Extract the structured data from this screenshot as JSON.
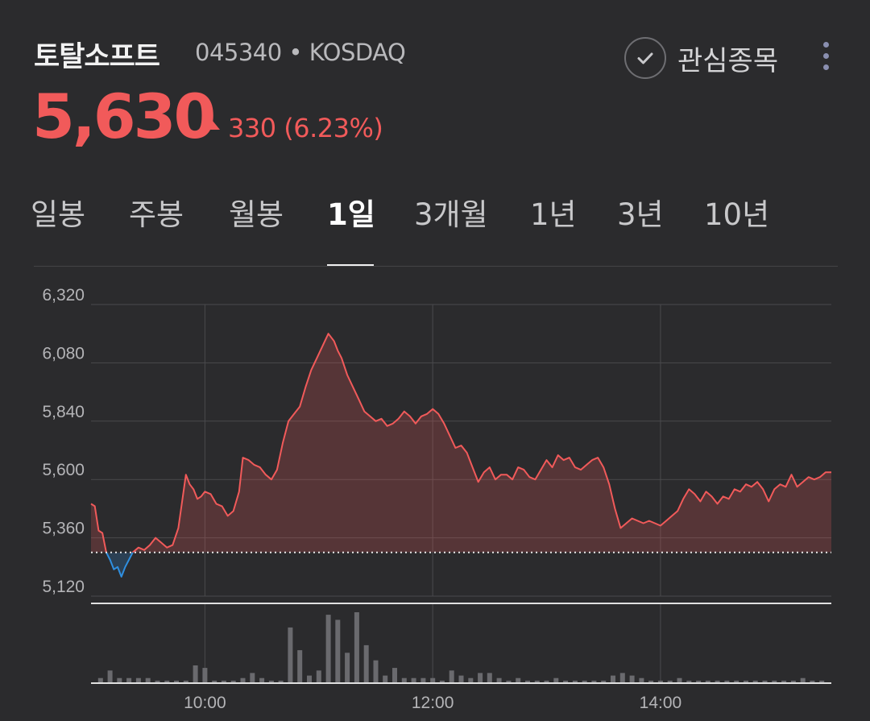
{
  "header": {
    "stock_name": "토탈소프트",
    "stock_code": "045340 • KOSDAQ",
    "watch_label": "관심종목"
  },
  "quote": {
    "price": "5,630",
    "change": "330 (6.23%)",
    "direction": "up"
  },
  "tabs": [
    {
      "label": "일봉",
      "active": false
    },
    {
      "label": "주봉",
      "active": false
    },
    {
      "label": "월봉",
      "active": false
    },
    {
      "label": "1일",
      "active": true
    },
    {
      "label": "3개월",
      "active": false
    },
    {
      "label": "1년",
      "active": false
    },
    {
      "label": "3년",
      "active": false
    },
    {
      "label": "10년",
      "active": false
    }
  ],
  "colors": {
    "background": "#2b2b2d",
    "up": "#f15a5a",
    "down": "#2f8fe0",
    "volume": "#6a6a6e",
    "grid": "#4a4a4d"
  },
  "chart_data": {
    "type": "line",
    "title": "",
    "xlabel": "",
    "ylabel": "",
    "ylim": [
      5120,
      6320
    ],
    "y_ticks": [
      "6,320",
      "6,080",
      "5,840",
      "5,600",
      "5,360",
      "5,120"
    ],
    "x_ticks": [
      "10:00",
      "12:00",
      "14:00"
    ],
    "x_range": [
      "09:00",
      "15:30"
    ],
    "previous_close": 5300,
    "grid": true,
    "series": [
      {
        "values": [
          [
            "09:00",
            5500
          ],
          [
            "09:02",
            5490
          ],
          [
            "09:04",
            5390
          ],
          [
            "09:06",
            5380
          ],
          [
            "09:08",
            5300
          ],
          [
            "09:10",
            5270
          ],
          [
            "09:12",
            5230
          ],
          [
            "09:14",
            5240
          ],
          [
            "09:16",
            5200
          ],
          [
            "09:18",
            5240
          ],
          [
            "09:20",
            5270
          ],
          [
            "09:22",
            5300
          ],
          [
            "09:25",
            5320
          ],
          [
            "09:28",
            5310
          ],
          [
            "09:31",
            5330
          ],
          [
            "09:34",
            5360
          ],
          [
            "09:37",
            5340
          ],
          [
            "09:40",
            5320
          ],
          [
            "09:43",
            5330
          ],
          [
            "09:46",
            5400
          ],
          [
            "09:48",
            5510
          ],
          [
            "09:50",
            5620
          ],
          [
            "09:52",
            5580
          ],
          [
            "09:54",
            5560
          ],
          [
            "09:56",
            5520
          ],
          [
            "09:58",
            5530
          ],
          [
            "10:00",
            5550
          ],
          [
            "10:03",
            5540
          ],
          [
            "10:06",
            5500
          ],
          [
            "10:09",
            5490
          ],
          [
            "10:12",
            5450
          ],
          [
            "10:15",
            5470
          ],
          [
            "10:18",
            5550
          ],
          [
            "10:20",
            5690
          ],
          [
            "10:23",
            5680
          ],
          [
            "10:26",
            5660
          ],
          [
            "10:29",
            5650
          ],
          [
            "10:32",
            5620
          ],
          [
            "10:35",
            5600
          ],
          [
            "10:38",
            5640
          ],
          [
            "10:41",
            5750
          ],
          [
            "10:44",
            5840
          ],
          [
            "10:47",
            5870
          ],
          [
            "10:50",
            5900
          ],
          [
            "10:53",
            5980
          ],
          [
            "10:56",
            6050
          ],
          [
            "10:59",
            6100
          ],
          [
            "11:02",
            6150
          ],
          [
            "11:05",
            6200
          ],
          [
            "11:08",
            6170
          ],
          [
            "11:10",
            6130
          ],
          [
            "11:12",
            6100
          ],
          [
            "11:15",
            6030
          ],
          [
            "11:18",
            5980
          ],
          [
            "11:21",
            5930
          ],
          [
            "11:24",
            5880
          ],
          [
            "11:27",
            5860
          ],
          [
            "11:30",
            5840
          ],
          [
            "11:33",
            5850
          ],
          [
            "11:36",
            5820
          ],
          [
            "11:39",
            5830
          ],
          [
            "11:42",
            5850
          ],
          [
            "11:45",
            5880
          ],
          [
            "11:48",
            5860
          ],
          [
            "11:51",
            5830
          ],
          [
            "11:54",
            5860
          ],
          [
            "11:57",
            5870
          ],
          [
            "12:00",
            5890
          ],
          [
            "12:03",
            5870
          ],
          [
            "12:06",
            5830
          ],
          [
            "12:09",
            5780
          ],
          [
            "12:12",
            5730
          ],
          [
            "12:15",
            5740
          ],
          [
            "12:18",
            5710
          ],
          [
            "12:21",
            5650
          ],
          [
            "12:24",
            5590
          ],
          [
            "12:27",
            5630
          ],
          [
            "12:30",
            5650
          ],
          [
            "12:33",
            5600
          ],
          [
            "12:36",
            5620
          ],
          [
            "12:39",
            5620
          ],
          [
            "12:42",
            5600
          ],
          [
            "12:45",
            5650
          ],
          [
            "12:48",
            5640
          ],
          [
            "12:51",
            5610
          ],
          [
            "12:54",
            5600
          ],
          [
            "12:57",
            5640
          ],
          [
            "13:00",
            5680
          ],
          [
            "13:03",
            5650
          ],
          [
            "13:06",
            5700
          ],
          [
            "13:09",
            5680
          ],
          [
            "13:12",
            5690
          ],
          [
            "13:15",
            5650
          ],
          [
            "13:18",
            5640
          ],
          [
            "13:21",
            5660
          ],
          [
            "13:24",
            5680
          ],
          [
            "13:27",
            5690
          ],
          [
            "13:30",
            5650
          ],
          [
            "13:33",
            5580
          ],
          [
            "13:36",
            5480
          ],
          [
            "13:39",
            5400
          ],
          [
            "13:42",
            5420
          ],
          [
            "13:45",
            5440
          ],
          [
            "13:48",
            5430
          ],
          [
            "13:51",
            5420
          ],
          [
            "13:54",
            5430
          ],
          [
            "13:57",
            5420
          ],
          [
            "14:00",
            5410
          ],
          [
            "14:03",
            5430
          ],
          [
            "14:06",
            5450
          ],
          [
            "14:09",
            5470
          ],
          [
            "14:12",
            5520
          ],
          [
            "14:15",
            5560
          ],
          [
            "14:18",
            5540
          ],
          [
            "14:21",
            5510
          ],
          [
            "14:24",
            5550
          ],
          [
            "14:27",
            5530
          ],
          [
            "14:30",
            5500
          ],
          [
            "14:33",
            5530
          ],
          [
            "14:36",
            5520
          ],
          [
            "14:39",
            5560
          ],
          [
            "14:42",
            5550
          ],
          [
            "14:45",
            5580
          ],
          [
            "14:48",
            5570
          ],
          [
            "14:51",
            5590
          ],
          [
            "14:54",
            5560
          ],
          [
            "14:57",
            5510
          ],
          [
            "15:00",
            5560
          ],
          [
            "15:03",
            5580
          ],
          [
            "15:06",
            5570
          ],
          [
            "15:09",
            5620
          ],
          [
            "15:12",
            5570
          ],
          [
            "15:15",
            5590
          ],
          [
            "15:18",
            5610
          ],
          [
            "15:21",
            5600
          ],
          [
            "15:24",
            5610
          ],
          [
            "15:27",
            5630
          ],
          [
            "15:30",
            5630
          ]
        ]
      }
    ],
    "volume": {
      "values": [
        [
          "09:05",
          2
        ],
        [
          "09:10",
          5
        ],
        [
          "09:15",
          2
        ],
        [
          "09:20",
          2
        ],
        [
          "09:25",
          2
        ],
        [
          "09:30",
          2
        ],
        [
          "09:35",
          1
        ],
        [
          "09:40",
          1
        ],
        [
          "09:45",
          1
        ],
        [
          "09:50",
          1
        ],
        [
          "09:55",
          7
        ],
        [
          "10:00",
          6
        ],
        [
          "10:05",
          1
        ],
        [
          "10:10",
          1
        ],
        [
          "10:15",
          1
        ],
        [
          "10:20",
          2
        ],
        [
          "10:25",
          4
        ],
        [
          "10:30",
          2
        ],
        [
          "10:35",
          1
        ],
        [
          "10:40",
          1
        ],
        [
          "10:45",
          22
        ],
        [
          "10:50",
          13
        ],
        [
          "10:55",
          3
        ],
        [
          "11:00",
          5
        ],
        [
          "11:05",
          27
        ],
        [
          "11:10",
          25
        ],
        [
          "11:15",
          12
        ],
        [
          "11:20",
          28
        ],
        [
          "11:25",
          15
        ],
        [
          "11:30",
          9
        ],
        [
          "11:35",
          3
        ],
        [
          "11:40",
          6
        ],
        [
          "11:45",
          2
        ],
        [
          "11:50",
          2
        ],
        [
          "11:55",
          2
        ],
        [
          "12:00",
          2
        ],
        [
          "12:05",
          1
        ],
        [
          "12:10",
          5
        ],
        [
          "12:15",
          3
        ],
        [
          "12:20",
          2
        ],
        [
          "12:25",
          4
        ],
        [
          "12:30",
          4
        ],
        [
          "12:35",
          2
        ],
        [
          "12:40",
          1
        ],
        [
          "12:45",
          2
        ],
        [
          "12:50",
          1
        ],
        [
          "12:55",
          1
        ],
        [
          "13:00",
          1
        ],
        [
          "13:05",
          2
        ],
        [
          "13:10",
          1
        ],
        [
          "13:15",
          1
        ],
        [
          "13:20",
          1
        ],
        [
          "13:25",
          1
        ],
        [
          "13:30",
          1
        ],
        [
          "13:35",
          3
        ],
        [
          "13:40",
          4
        ],
        [
          "13:45",
          3
        ],
        [
          "13:50",
          2
        ],
        [
          "13:55",
          1
        ],
        [
          "14:00",
          1
        ],
        [
          "14:05",
          1
        ],
        [
          "14:10",
          2
        ],
        [
          "14:15",
          1
        ],
        [
          "14:20",
          1
        ],
        [
          "14:25",
          1
        ],
        [
          "14:30",
          1
        ],
        [
          "14:35",
          1
        ],
        [
          "14:40",
          1
        ],
        [
          "14:45",
          1
        ],
        [
          "14:50",
          1
        ],
        [
          "14:55",
          1
        ],
        [
          "15:00",
          1
        ],
        [
          "15:05",
          1
        ],
        [
          "15:10",
          1
        ],
        [
          "15:15",
          2
        ],
        [
          "15:20",
          1
        ],
        [
          "15:25",
          1
        ]
      ]
    }
  }
}
